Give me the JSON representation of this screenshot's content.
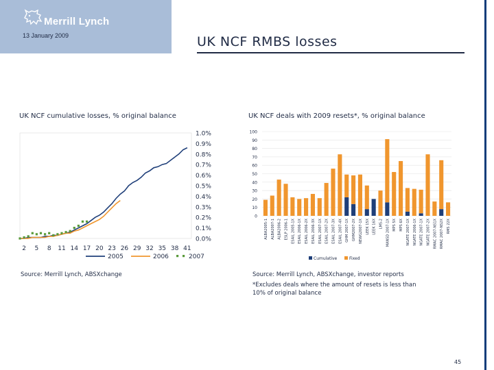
{
  "header": {
    "brand": "Merrill Lynch",
    "date": "13 January 2009",
    "title": "UK NCF RMBS losses",
    "page_number": "45"
  },
  "colors": {
    "line_2005": "#1f3f79",
    "line_2006": "#f0962e",
    "line_2007": "#5a9a3a",
    "bar_cumulative": "#1f3f79",
    "bar_fixed": "#f0962e",
    "accent_rule": "#0f3d7a"
  },
  "left_chart": {
    "title": "UK NCF cumulative losses, % original balance",
    "source": "Source: Merrill Lynch, ABSXchange"
  },
  "right_chart": {
    "title": "UK NCF deals with 2009 resets*, % original balance",
    "source": "Source: Merrill Lynch, ABSXchange, investor reports",
    "footnote": "*Excludes deals where the amount of resets is less than 10% of original balance"
  },
  "chart_data": [
    {
      "type": "line",
      "title": "UK NCF cumulative losses, % original balance",
      "x_ticks": [
        2,
        5,
        8,
        11,
        14,
        17,
        20,
        23,
        26,
        29,
        32,
        35,
        38,
        41
      ],
      "xlim": [
        1,
        42
      ],
      "ylim": [
        0,
        1.0
      ],
      "y_ticks": [
        "1.0%",
        "0.9%",
        "0.8%",
        "0.7%",
        "0.6%",
        "0.5%",
        "0.4%",
        "0.3%",
        "0.2%",
        "0.1%",
        "0.0%"
      ],
      "y_axis_side": "right",
      "legend_position": "bottom",
      "series": [
        {
          "name": "2005",
          "style": "line",
          "x": [
            1,
            2,
            3,
            4,
            5,
            6,
            7,
            8,
            9,
            10,
            11,
            12,
            13,
            14,
            15,
            16,
            17,
            18,
            19,
            20,
            21,
            22,
            23,
            24,
            25,
            26,
            27,
            28,
            29,
            30,
            31,
            32,
            33,
            34,
            35,
            36,
            37,
            38,
            39,
            40,
            41
          ],
          "values": [
            0.0,
            0.0,
            0.01,
            0.01,
            0.01,
            0.01,
            0.02,
            0.02,
            0.03,
            0.03,
            0.04,
            0.05,
            0.06,
            0.08,
            0.1,
            0.12,
            0.14,
            0.17,
            0.2,
            0.22,
            0.25,
            0.29,
            0.33,
            0.38,
            0.42,
            0.45,
            0.5,
            0.53,
            0.55,
            0.58,
            0.62,
            0.64,
            0.67,
            0.68,
            0.7,
            0.71,
            0.74,
            0.77,
            0.8,
            0.84,
            0.86
          ]
        },
        {
          "name": "2006",
          "style": "line",
          "x": [
            1,
            2,
            3,
            4,
            5,
            6,
            7,
            8,
            9,
            10,
            11,
            12,
            13,
            14,
            15,
            16,
            17,
            18,
            19,
            20,
            21,
            22,
            23,
            24,
            25
          ],
          "values": [
            0.0,
            0.0,
            0.0,
            0.01,
            0.01,
            0.01,
            0.01,
            0.02,
            0.02,
            0.03,
            0.04,
            0.05,
            0.05,
            0.07,
            0.08,
            0.1,
            0.12,
            0.14,
            0.16,
            0.18,
            0.21,
            0.25,
            0.29,
            0.33,
            0.36
          ]
        },
        {
          "name": "2007",
          "style": "markers",
          "x": [
            1,
            2,
            3,
            4,
            5,
            6,
            7,
            8,
            9,
            10,
            11,
            12,
            13,
            14,
            15,
            16,
            17
          ],
          "values": [
            0.0,
            0.01,
            0.02,
            0.05,
            0.04,
            0.05,
            0.04,
            0.05,
            0.03,
            0.04,
            0.05,
            0.06,
            0.07,
            0.1,
            0.12,
            0.16,
            0.16
          ]
        }
      ]
    },
    {
      "type": "bar",
      "title": "UK NCF deals with 2009 resets*, % original balance",
      "ylim": [
        0,
        100
      ],
      "y_ticks": [
        100,
        90,
        80,
        70,
        60,
        50,
        40,
        30,
        20,
        10,
        0
      ],
      "legend_position": "bottom",
      "stacked": true,
      "categories": [
        "ALBA2005-1",
        "ALBA2007-1",
        "ALBA2006-2",
        "ESLP 2006-1",
        "ESAIL 2005-1X",
        "ESAIL 2006-1X",
        "ESAIL 2006-2X",
        "ESAIL 2006-3X",
        "ESAIL 2007-1X",
        "ESAIL 2007-2X",
        "ESAIL 2007-3X",
        "ESAIL 2007-4X",
        "GHM 2007-1X",
        "GHM2007-2X",
        "NEWG2007-1X",
        "LEEK 15X",
        "LEEK 16X",
        "LMS-2",
        "MANSD 2007-1X",
        "MPS 5X",
        "MPS 6X",
        "NGATE 2007-1X",
        "NGATE 2006-1X",
        "NGATE 2007-1X",
        "NGATE 2007-2X",
        "RMAC 2007-NS1X",
        "RMAC 2007-NS2X",
        "RMS 22X"
      ],
      "series": [
        {
          "name": "Cumulative",
          "values": [
            0,
            0,
            0,
            0,
            0,
            0,
            0,
            0,
            0,
            0,
            0,
            0,
            22,
            14,
            0,
            8,
            20,
            0,
            16,
            0,
            0,
            5,
            0,
            3,
            0,
            0,
            8,
            0
          ]
        },
        {
          "name": "Fixed",
          "values": [
            19,
            24,
            43,
            38,
            22,
            20,
            21,
            26,
            21,
            39,
            56,
            73,
            27,
            34,
            49,
            28,
            0,
            30,
            75,
            52,
            65,
            28,
            32,
            28,
            73,
            17,
            58,
            16
          ]
        }
      ]
    }
  ]
}
